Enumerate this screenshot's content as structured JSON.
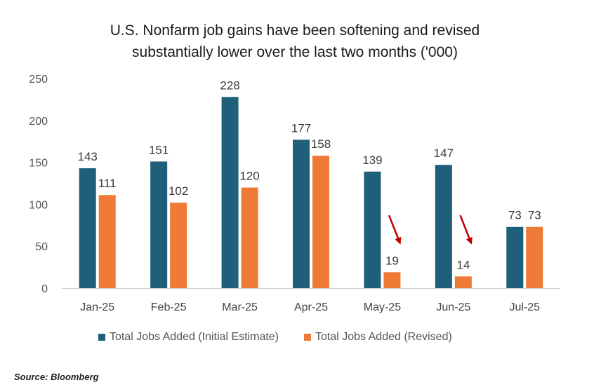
{
  "title_line1": "U.S. Nonfarm job gains have been softening and revised",
  "title_line2": "substantially lower over the last two months ('000)",
  "source": "Source: Bloomberg",
  "colors": {
    "initial": "#1f5f7a",
    "revised": "#ee7a35",
    "arrow": "#c00000"
  },
  "chart_data": {
    "type": "bar",
    "title": "U.S. Nonfarm job gains have been softening and revised substantially lower over the last two months ('000)",
    "xlabel": "",
    "ylabel": "",
    "ylim": [
      0,
      250
    ],
    "yticks": [
      "0",
      "50",
      "100",
      "150",
      "200",
      "250"
    ],
    "categories": [
      "Jan-25",
      "Feb-25",
      "Mar-25",
      "Apr-25",
      "May-25",
      "Jun-25",
      "Jul-25"
    ],
    "series": [
      {
        "name": "Total Jobs Added (Initial Estimate)",
        "values": [
          143,
          151,
          228,
          177,
          139,
          147,
          73
        ],
        "labels": [
          "143",
          "151",
          "228",
          "177",
          "139",
          "147",
          "73"
        ]
      },
      {
        "name": "Total Jobs Added (Revised)",
        "values": [
          111,
          102,
          120,
          158,
          19,
          14,
          73
        ],
        "labels": [
          "111",
          "102",
          "120",
          "158",
          "19",
          "14",
          "73"
        ]
      }
    ],
    "annotations": [
      {
        "type": "arrow-down",
        "category": "May-25"
      },
      {
        "type": "arrow-down",
        "category": "Jun-25"
      }
    ],
    "legend_position": "bottom",
    "grid": false
  }
}
